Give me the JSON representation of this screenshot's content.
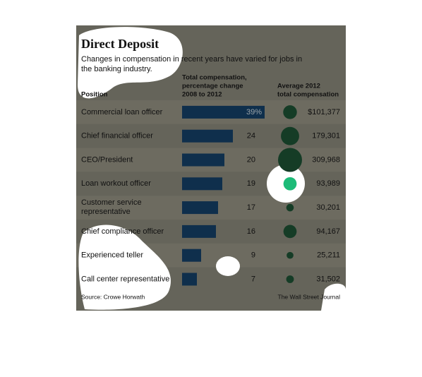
{
  "chart_data": {
    "type": "bar",
    "title": "Direct Deposit",
    "subtitle": "Changes in compensation in recent years have varied for jobs in the banking industry.",
    "category_header": "Position",
    "values_header": [
      "Total compensation,",
      "percentage change",
      "2008 to 2012"
    ],
    "size_header": [
      "Average 2012",
      "total compensation"
    ],
    "categories": [
      "Commercial loan officer",
      "Chief financial officer",
      "CEO/President",
      "Loan workout officer",
      [
        "Customer service",
        "representative"
      ],
      "Chief compliance officer",
      "Experienced teller",
      "Call center representative"
    ],
    "values": [
      39,
      24,
      20,
      19,
      17,
      16,
      9,
      7
    ],
    "value_labels": [
      "39%",
      "24",
      "20",
      "19",
      "17",
      "16",
      "9",
      "7"
    ],
    "color": "#0f2f4c",
    "sizes": [
      101377,
      179301,
      309968,
      93989,
      30201,
      94167,
      25211,
      31502
    ],
    "size_labels": [
      "$101,377",
      "179,301",
      "309,968",
      "93,989",
      "30,201",
      "94,167",
      "25,211",
      "31,502"
    ],
    "bubble_color": "#153c26",
    "highlight_color": "#1dbb78",
    "highlight_index": 3,
    "source": "Source: Crowe Horwath",
    "credit": "The Wall Street Journal"
  }
}
